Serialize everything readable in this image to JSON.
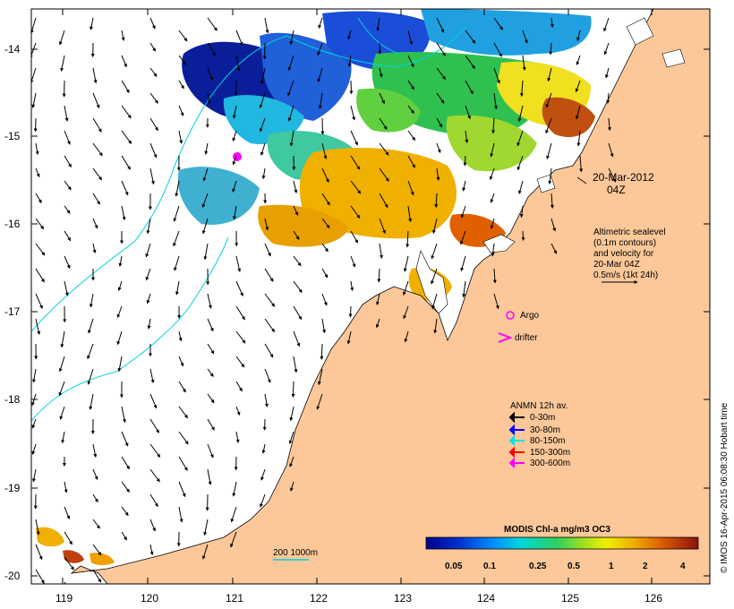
{
  "map": {
    "date_label": "20-Mar-2012",
    "time_label": "04Z",
    "legend_note_lines": [
      "Altimetric sealevel",
      "(0.1m contours)",
      "and velocity for",
      "20-Mar 04Z",
      "0.5m/s (1kt 24h)"
    ],
    "argo_label": "Argo",
    "drifter_label": "drifter",
    "anmn_title": "ANMN 12h av.",
    "anmn_items": [
      {
        "label": "0-30m",
        "color": "#000000"
      },
      {
        "label": "30-80m",
        "color": "#0000ff"
      },
      {
        "label": "80-150m",
        "color": "#00e5e5"
      },
      {
        "label": "150-300m",
        "color": "#ff0000"
      },
      {
        "label": "300-600m",
        "color": "#ff00ff"
      }
    ],
    "isobath_label": "200  1000m",
    "colorbar_title": "MODIS Chl-a mg/m3 OC3",
    "colorbar_ticks": [
      "0.05",
      "0.1",
      "0.25",
      "0.5",
      "1",
      "2",
      "4"
    ],
    "credit": "© IMOS 16-Apr-2015 06:08:30 Hobart time",
    "lon_ticks": [
      "119",
      "120",
      "121",
      "122",
      "123",
      "124",
      "125",
      "126"
    ],
    "lat_ticks": [
      "-14",
      "-15",
      "-16",
      "-17",
      "-18",
      "-19",
      "-20"
    ],
    "colors": {
      "land": "#fcc899",
      "isobath": "#00d0e0",
      "ocean": "#ffffff"
    }
  }
}
